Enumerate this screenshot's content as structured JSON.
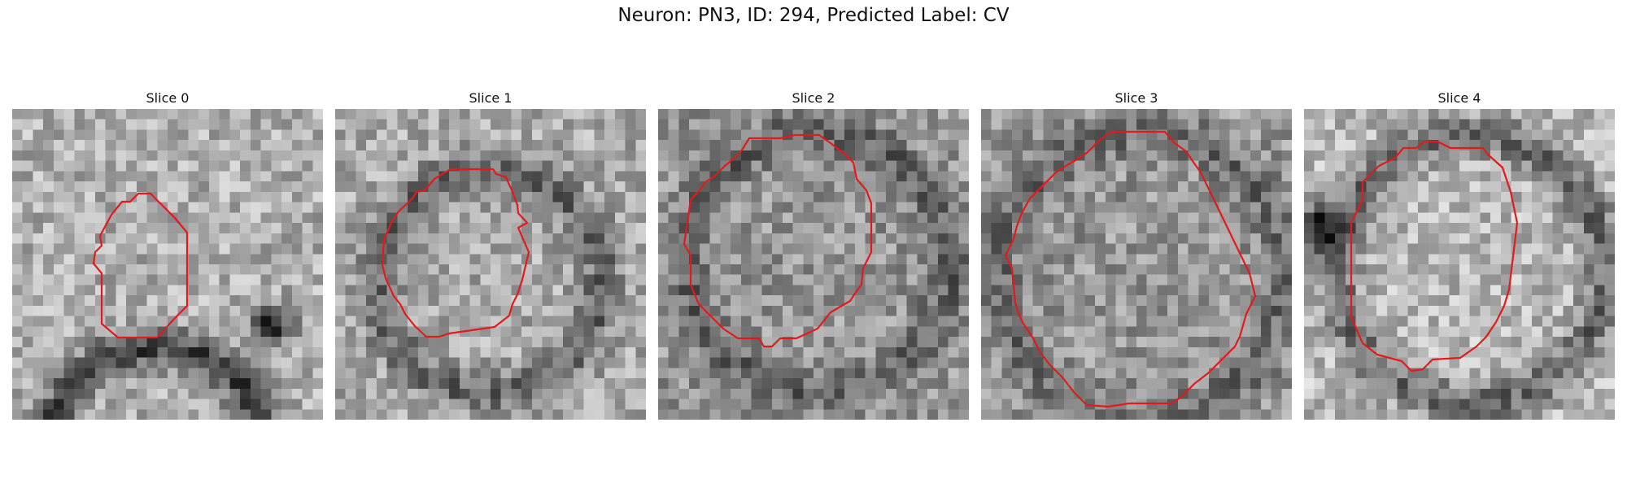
{
  "figure": {
    "title": "Neuron: PN3, ID: 294, Predicted Label: CV",
    "contour_color": "#e31a1c"
  },
  "panels": [
    {
      "label": "Slice 0"
    },
    {
      "label": "Slice 1"
    },
    {
      "label": "Slice 2"
    },
    {
      "label": "Slice 3"
    },
    {
      "label": "Slice 4"
    }
  ]
}
